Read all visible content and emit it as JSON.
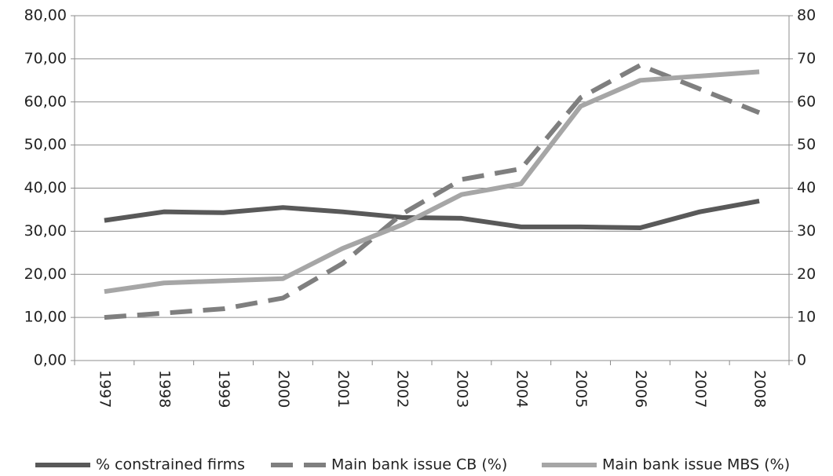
{
  "chart_data": {
    "type": "line",
    "categories": [
      "1997",
      "1998",
      "1999",
      "2000",
      "2001",
      "2002",
      "2003",
      "2004",
      "2005",
      "2006",
      "2007",
      "2008"
    ],
    "series": [
      {
        "name": "% constrained firms",
        "color": "#595959",
        "dash": "solid",
        "values": [
          32.5,
          34.5,
          34.3,
          35.5,
          34.5,
          33.2,
          33.0,
          31.0,
          31.0,
          30.8,
          34.5,
          37.0
        ]
      },
      {
        "name": "Main bank issue CB (%)",
        "color": "#7f7f7f",
        "dash": "dashed",
        "values": [
          10.0,
          11.0,
          12.0,
          14.5,
          22.5,
          34.0,
          42.0,
          44.5,
          61.0,
          68.5,
          63.0,
          57.5
        ]
      },
      {
        "name": "Main bank issue MBS (%)",
        "color": "#a6a6a6",
        "dash": "solid",
        "values": [
          16.0,
          18.0,
          18.5,
          19.0,
          26.0,
          31.5,
          38.5,
          41.0,
          59.0,
          65.0,
          66.0,
          67.0
        ]
      }
    ],
    "ylim": [
      0,
      80
    ],
    "yticks": [
      {
        "value": 0,
        "label": "0,00"
      },
      {
        "value": 10,
        "label": "10,00"
      },
      {
        "value": 20,
        "label": "20,00"
      },
      {
        "value": 30,
        "label": "30,00"
      },
      {
        "value": 40,
        "label": "40,00"
      },
      {
        "value": 50,
        "label": "50,00"
      },
      {
        "value": 60,
        "label": "60,00"
      },
      {
        "value": 70,
        "label": "70,00"
      },
      {
        "value": 80,
        "label": "80,00"
      }
    ],
    "y2lim": [
      0,
      80
    ],
    "y2ticks": [
      0,
      10,
      20,
      30,
      40,
      50,
      60,
      70,
      80
    ],
    "grid": true,
    "legend": "bottom"
  }
}
